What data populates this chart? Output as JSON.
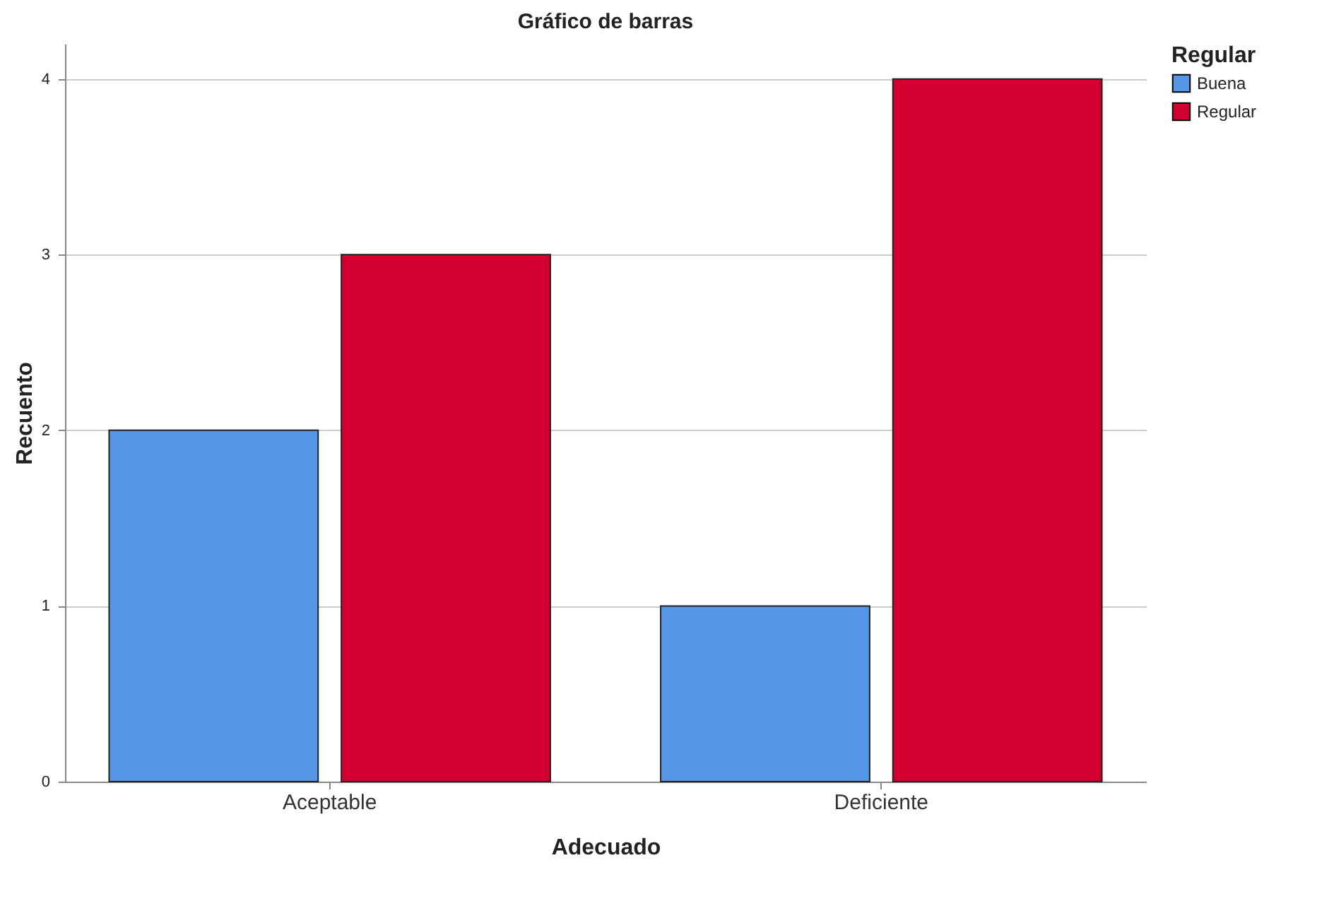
{
  "chart_data": {
    "type": "bar",
    "title": "Gráfico de barras",
    "xlabel": "Adecuado",
    "ylabel": "Recuento",
    "legend_title": "Regular",
    "categories": [
      "Aceptable",
      "Deficiente"
    ],
    "series": [
      {
        "name": "Buena",
        "color": "#5596e6",
        "values": [
          2,
          1
        ]
      },
      {
        "name": "Regular",
        "color": "#d3002f",
        "values": [
          3,
          4
        ]
      }
    ],
    "ylim": [
      0,
      4.2
    ],
    "yticks": [
      0,
      1,
      2,
      3,
      4
    ],
    "grid": "y",
    "legend": "top right"
  }
}
